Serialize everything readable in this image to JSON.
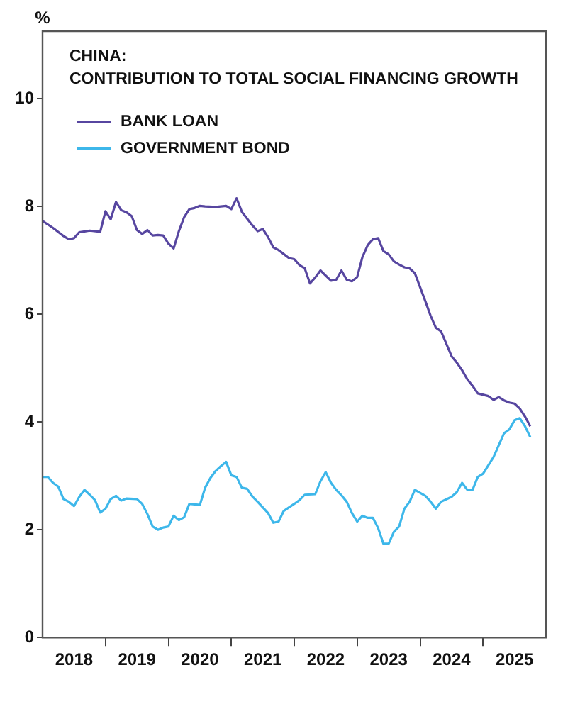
{
  "chart_data": {
    "type": "line",
    "title": "CHINA:",
    "subtitle": "CONTRIBUTION TO TOTAL SOCIAL FINANCING GROWTH",
    "ylabel": "%",
    "xlim": [
      "2018-01",
      "2026-01"
    ],
    "xticks": [
      {
        "value": "2018-07",
        "label": "2018"
      },
      {
        "value": "2019-01",
        "label": null
      },
      {
        "value": "2019-07",
        "label": "2019"
      },
      {
        "value": "2020-01",
        "label": null
      },
      {
        "value": "2020-07",
        "label": "2020"
      },
      {
        "value": "2021-01",
        "label": null
      },
      {
        "value": "2021-07",
        "label": "2021"
      },
      {
        "value": "2022-01",
        "label": null
      },
      {
        "value": "2022-07",
        "label": "2022"
      },
      {
        "value": "2023-01",
        "label": null
      },
      {
        "value": "2023-07",
        "label": "2023"
      },
      {
        "value": "2024-01",
        "label": null
      },
      {
        "value": "2024-07",
        "label": "2024"
      },
      {
        "value": "2025-01",
        "label": null
      },
      {
        "value": "2025-07",
        "label": "2025"
      }
    ],
    "ylim": [
      0,
      11.25
    ],
    "yticks": [
      0,
      2,
      4,
      6,
      8,
      10
    ],
    "grid": false,
    "legend": "top left",
    "series": [
      {
        "name": "BANK LOAN",
        "color": "#5746a0",
        "x": [
          "2018-01",
          "2018-03",
          "2018-05",
          "2018-06",
          "2018-07",
          "2018-08",
          "2018-10",
          "2018-12",
          "2019-01",
          "2019-02",
          "2019-03",
          "2019-04",
          "2019-05",
          "2019-06",
          "2019-07",
          "2019-08",
          "2019-09",
          "2019-10",
          "2019-11",
          "2019-12",
          "2020-01",
          "2020-02",
          "2020-03",
          "2020-04",
          "2020-05",
          "2020-06",
          "2020-07",
          "2020-08",
          "2020-10",
          "2020-12",
          "2021-01",
          "2021-02",
          "2021-03",
          "2021-05",
          "2021-06",
          "2021-07",
          "2021-08",
          "2021-09",
          "2021-10",
          "2021-12",
          "2022-01",
          "2022-02",
          "2022-03",
          "2022-04",
          "2022-05",
          "2022-06",
          "2022-08",
          "2022-09",
          "2022-10",
          "2022-11",
          "2022-12",
          "2023-01",
          "2023-02",
          "2023-03",
          "2023-04",
          "2023-05",
          "2023-06",
          "2023-07",
          "2023-08",
          "2023-09",
          "2023-10",
          "2023-11",
          "2023-12",
          "2024-01",
          "2024-02",
          "2024-03",
          "2024-04",
          "2024-05",
          "2024-06",
          "2024-07",
          "2024-08",
          "2024-09",
          "2024-10",
          "2024-11",
          "2024-12",
          "2025-02",
          "2025-03",
          "2025-04",
          "2025-05",
          "2025-06",
          "2025-07",
          "2025-08",
          "2025-09",
          "2025-10"
        ],
        "values": [
          7.73,
          7.6,
          7.45,
          7.39,
          7.41,
          7.52,
          7.55,
          7.53,
          7.91,
          7.76,
          8.08,
          7.93,
          7.89,
          7.82,
          7.56,
          7.49,
          7.56,
          7.46,
          7.47,
          7.46,
          7.31,
          7.22,
          7.54,
          7.8,
          7.95,
          7.97,
          8.01,
          8.0,
          7.99,
          8.01,
          7.95,
          8.15,
          7.9,
          7.65,
          7.54,
          7.58,
          7.43,
          7.24,
          7.19,
          7.04,
          7.02,
          6.91,
          6.85,
          6.57,
          6.68,
          6.81,
          6.62,
          6.64,
          6.81,
          6.64,
          6.61,
          6.69,
          7.06,
          7.28,
          7.39,
          7.41,
          7.17,
          7.11,
          6.98,
          6.92,
          6.87,
          6.85,
          6.76,
          6.5,
          6.24,
          5.97,
          5.75,
          5.68,
          5.45,
          5.22,
          5.1,
          4.96,
          4.79,
          4.67,
          4.53,
          4.48,
          4.41,
          4.46,
          4.4,
          4.36,
          4.34,
          4.25,
          4.1,
          3.92
        ]
      },
      {
        "name": "GOVERNMENT BOND",
        "color": "#3db7ea",
        "x": [
          "2018-01",
          "2018-02",
          "2018-03",
          "2018-04",
          "2018-05",
          "2018-06",
          "2018-07",
          "2018-08",
          "2018-09",
          "2018-10",
          "2018-11",
          "2018-12",
          "2019-01",
          "2019-02",
          "2019-03",
          "2019-04",
          "2019-05",
          "2019-07",
          "2019-08",
          "2019-09",
          "2019-10",
          "2019-11",
          "2019-12",
          "2020-01",
          "2020-02",
          "2020-03",
          "2020-04",
          "2020-05",
          "2020-06",
          "2020-07",
          "2020-08",
          "2020-09",
          "2020-10",
          "2020-11",
          "2020-12",
          "2021-01",
          "2021-02",
          "2021-03",
          "2021-04",
          "2021-05",
          "2021-06",
          "2021-08",
          "2021-09",
          "2021-10",
          "2021-11",
          "2022-01",
          "2022-02",
          "2022-03",
          "2022-05",
          "2022-06",
          "2022-07",
          "2022-08",
          "2022-09",
          "2022-10",
          "2022-11",
          "2022-12",
          "2023-01",
          "2023-02",
          "2023-03",
          "2023-04",
          "2023-05",
          "2023-06",
          "2023-07",
          "2023-08",
          "2023-09",
          "2023-10",
          "2023-11",
          "2023-12",
          "2024-02",
          "2024-03",
          "2024-04",
          "2024-05",
          "2024-07",
          "2024-08",
          "2024-09",
          "2024-10",
          "2024-11",
          "2024-12",
          "2025-01",
          "2025-03",
          "2025-04",
          "2025-05",
          "2025-06",
          "2025-07",
          "2025-08",
          "2025-09",
          "2025-10"
        ],
        "values": [
          2.98,
          2.98,
          2.87,
          2.8,
          2.57,
          2.52,
          2.44,
          2.61,
          2.74,
          2.65,
          2.55,
          2.32,
          2.39,
          2.57,
          2.63,
          2.54,
          2.58,
          2.57,
          2.48,
          2.29,
          2.06,
          2.0,
          2.04,
          2.06,
          2.26,
          2.18,
          2.23,
          2.48,
          2.47,
          2.46,
          2.78,
          2.96,
          3.09,
          3.18,
          3.26,
          3.01,
          2.98,
          2.78,
          2.76,
          2.62,
          2.52,
          2.31,
          2.13,
          2.15,
          2.35,
          2.48,
          2.55,
          2.65,
          2.66,
          2.9,
          3.07,
          2.87,
          2.74,
          2.64,
          2.52,
          2.31,
          2.15,
          2.26,
          2.22,
          2.22,
          2.03,
          1.74,
          1.74,
          1.96,
          2.06,
          2.39,
          2.52,
          2.74,
          2.63,
          2.52,
          2.39,
          2.52,
          2.61,
          2.7,
          2.87,
          2.74,
          2.74,
          2.98,
          3.04,
          3.35,
          3.57,
          3.79,
          3.86,
          4.03,
          4.07,
          3.92,
          3.72
        ]
      }
    ]
  }
}
